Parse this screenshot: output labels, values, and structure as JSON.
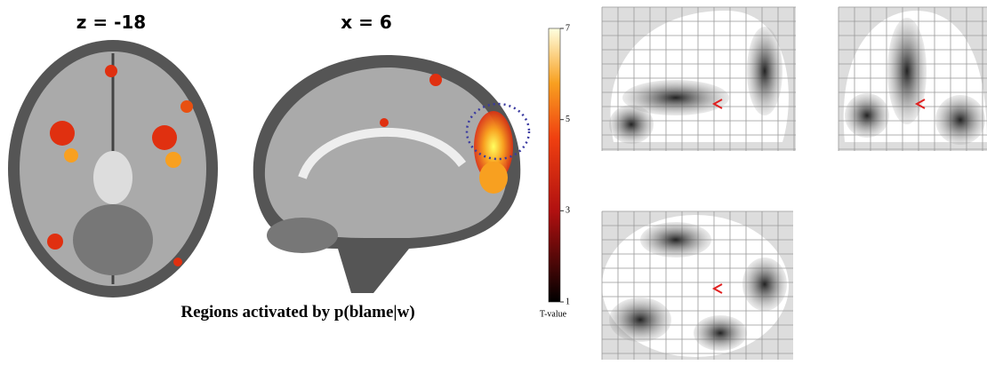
{
  "panels": [
    {
      "label": "z = -18"
    },
    {
      "label": "x = 6"
    }
  ],
  "caption": "Regions activated by p(blame|w)",
  "colorbar": {
    "title": "T-value",
    "ticks": [
      7,
      5,
      3,
      1
    ]
  }
}
